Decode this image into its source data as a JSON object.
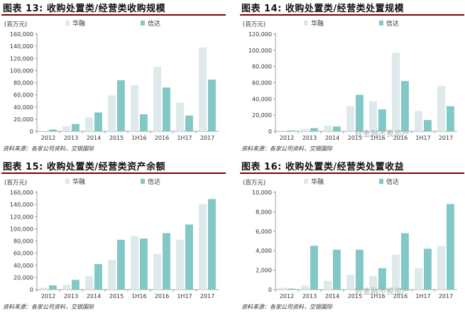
{
  "chart_data": [
    {
      "type": "bar",
      "title": "图表 13: 收购处置类/经营类收购规模",
      "unit": "(百万元)",
      "categories": [
        "2012",
        "2013",
        "2014",
        "2015",
        "1H16",
        "2016",
        "1H17",
        "2017"
      ],
      "series": [
        {
          "name": "华融",
          "values": [
            1000,
            8000,
            23000,
            59000,
            76000,
            106000,
            47000,
            138000
          ]
        },
        {
          "name": "信达",
          "values": [
            3000,
            12000,
            31000,
            84000,
            28000,
            72000,
            26000,
            85000
          ]
        }
      ],
      "ylim": [
        0,
        160000
      ],
      "yticks": [
        0,
        20000,
        40000,
        60000,
        80000,
        100000,
        120000,
        140000,
        160000
      ],
      "ytick_labels": [
        "0",
        "20,000",
        "40,000",
        "60,000",
        "80,000",
        "100,000",
        "120,000",
        "140,000",
        "160,000"
      ],
      "source": "资料来源：各家公司资料，交银国际"
    },
    {
      "type": "bar",
      "title": "图表 14: 收购处置类/经营类处置规模",
      "unit": "(百万元)",
      "categories": [
        "2012",
        "2013",
        "2014",
        "2015",
        "1H16",
        "2016",
        "1H17",
        "2017"
      ],
      "series": [
        {
          "name": "华融",
          "values": [
            1000,
            3000,
            7000,
            31000,
            37000,
            97000,
            25000,
            56000
          ]
        },
        {
          "name": "信达",
          "values": [
            1000,
            4000,
            6000,
            45000,
            27000,
            62000,
            14000,
            31000
          ]
        }
      ],
      "ylim": [
        0,
        120000
      ],
      "yticks": [
        0,
        20000,
        40000,
        60000,
        80000,
        100000,
        120000
      ],
      "ytick_labels": [
        "0",
        "20,000",
        "40,000",
        "60,000",
        "80,000",
        "100,000",
        "120,000"
      ],
      "source": "资料来源：各家公司资料，交银国际"
    },
    {
      "type": "bar",
      "title": "图表 15: 收购处置类/经营类资产余额",
      "unit": "(百万元)",
      "categories": [
        "2012",
        "2013",
        "2014",
        "2015",
        "1H16",
        "2016",
        "1H17",
        "2017"
      ],
      "series": [
        {
          "name": "华融",
          "values": [
            3000,
            8000,
            22000,
            49000,
            88000,
            59000,
            82000,
            141000
          ]
        },
        {
          "name": "信达",
          "values": [
            7000,
            16000,
            42000,
            82000,
            84000,
            93000,
            107000,
            149000
          ]
        }
      ],
      "ylim": [
        0,
        160000
      ],
      "yticks": [
        0,
        20000,
        40000,
        60000,
        80000,
        100000,
        120000,
        140000,
        160000
      ],
      "ytick_labels": [
        "0",
        "20,000",
        "40,000",
        "60,000",
        "80,000",
        "100,000",
        "120,000",
        "140,000",
        "160,000"
      ],
      "source": "资料来源：各家公司资料，交银国际"
    },
    {
      "type": "bar",
      "title": "图表 16: 收购处置类/经营类处置收益",
      "unit": "(百万元)",
      "categories": [
        "2012",
        "2013",
        "2014",
        "2015",
        "1H16",
        "2016",
        "1H17",
        "2017"
      ],
      "series": [
        {
          "name": "华融",
          "values": [
            200,
            400,
            900,
            1500,
            1400,
            3600,
            2200,
            4500
          ]
        },
        {
          "name": "信达",
          "values": [
            100,
            4500,
            4100,
            4100,
            2200,
            5800,
            4200,
            8800
          ]
        }
      ],
      "ylim": [
        0,
        10000
      ],
      "yticks": [
        0,
        2000,
        4000,
        6000,
        8000,
        10000
      ],
      "ytick_labels": [
        "0",
        "2,000",
        "4,000",
        "6,000",
        "8,000",
        "10,000"
      ],
      "source": "资料来源：各家公司资料，交银国际"
    }
  ],
  "colors": {
    "huarong": "#dde9ea",
    "cinda": "#82c8c6",
    "title_rule": "#7f0000",
    "axis": "#888888"
  },
  "watermark": "轻金融不良资产"
}
